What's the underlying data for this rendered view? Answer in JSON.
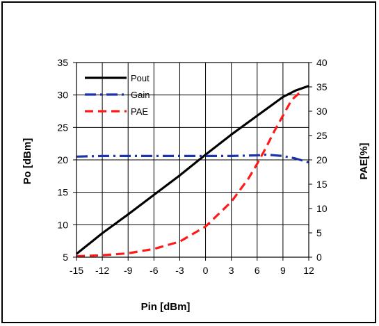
{
  "chart_data": {
    "type": "line",
    "title": "",
    "xlabel": "Pin [dBm]",
    "ylabel": "Po [dBm]",
    "ylabel_right": "PAE[%]",
    "xlim": [
      -15,
      12
    ],
    "ylim": [
      5,
      35
    ],
    "ylim_right": [
      0,
      40
    ],
    "x_ticks": [
      "-15",
      "-12",
      "-9",
      "-6",
      "-3",
      "0",
      "3",
      "6",
      "9",
      "12"
    ],
    "y_ticks": [
      "5",
      "10",
      "15",
      "20",
      "25",
      "30",
      "35"
    ],
    "y_ticks_right": [
      "0",
      "5",
      "10",
      "15",
      "20",
      "25",
      "30",
      "35",
      "40"
    ],
    "grid": true,
    "legend_position": "top-left",
    "series": [
      {
        "name": "Pout",
        "axis": "left",
        "color": "#000000",
        "dash": "solid",
        "x": [
          -15,
          -12,
          -9,
          -6,
          -3,
          0,
          3,
          6,
          9,
          10.5,
          12
        ],
        "y": [
          5.5,
          8.7,
          11.6,
          14.6,
          17.6,
          20.8,
          23.9,
          26.8,
          29.7,
          30.7,
          31.4
        ]
      },
      {
        "name": "Gain",
        "axis": "left",
        "color": "#1a33aa",
        "dash": "dashdot",
        "x": [
          -15,
          -12,
          -9,
          -6,
          -3,
          0,
          3,
          6,
          7,
          9,
          10.5,
          12
        ],
        "y": [
          20.5,
          20.6,
          20.6,
          20.6,
          20.6,
          20.6,
          20.6,
          20.7,
          20.8,
          20.6,
          20.2,
          19.6
        ]
      },
      {
        "name": "PAE",
        "axis": "right",
        "color": "#ff1a1a",
        "dash": "dashed",
        "x": [
          -15,
          -12,
          -9,
          -6,
          -3,
          0,
          3,
          5,
          6,
          7,
          8,
          9,
          10,
          11
        ],
        "y": [
          0.2,
          0.4,
          0.8,
          1.7,
          3.2,
          6.3,
          11.4,
          16.2,
          19.2,
          22.4,
          25.9,
          29.1,
          32.3,
          33.9
        ]
      }
    ]
  }
}
